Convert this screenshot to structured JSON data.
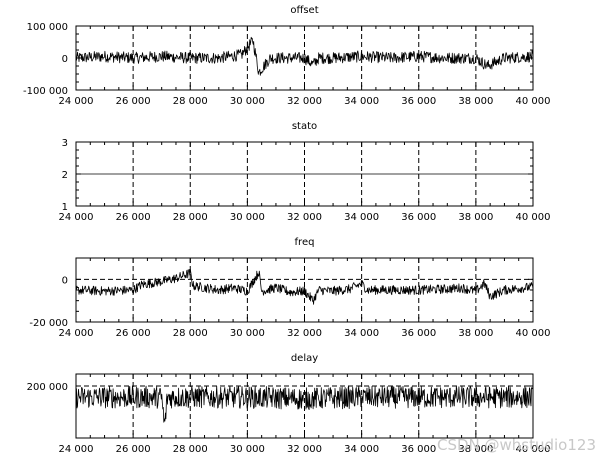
{
  "watermark": "CSDN @whstudio123",
  "chart_data": [
    {
      "type": "line",
      "title": "offset",
      "xlabel": "",
      "ylabel": "",
      "xlim": [
        24000,
        40000
      ],
      "ylim": [
        -100000,
        100000
      ],
      "xticks": [
        24000,
        26000,
        28000,
        30000,
        32000,
        34000,
        36000,
        38000,
        40000
      ],
      "xtick_labels": [
        "24 000",
        "26 000",
        "28 000",
        "30 000",
        "32 000",
        "34 000",
        "36 000",
        "38 000",
        "40 000"
      ],
      "yticks": [
        -100000,
        0,
        100000
      ],
      "ytick_labels": [
        "-100 000",
        "0",
        "100 000"
      ],
      "dashed_x_grid": [
        26000,
        28000,
        30000,
        32000,
        34000,
        36000,
        38000
      ],
      "dashed_y_grid": [],
      "noise_amplitude": 18000,
      "series": [
        {
          "x": [
            24000,
            25000,
            26000,
            27000,
            28000,
            29000,
            29800,
            30200,
            30400,
            30800,
            31500,
            32000,
            32300,
            32500,
            33000,
            34000,
            35000,
            36000,
            37000,
            38000,
            38400,
            39000,
            40000
          ],
          "y": [
            0,
            5000,
            0,
            5000,
            0,
            0,
            10000,
            55000,
            -45000,
            0,
            0,
            0,
            -20000,
            0,
            0,
            5000,
            0,
            5000,
            0,
            0,
            -25000,
            0,
            5000
          ]
        }
      ]
    },
    {
      "type": "line",
      "title": "stato",
      "xlabel": "",
      "ylabel": "",
      "xlim": [
        24000,
        40000
      ],
      "ylim": [
        1,
        3
      ],
      "xticks": [
        24000,
        26000,
        28000,
        30000,
        32000,
        34000,
        36000,
        38000,
        40000
      ],
      "xtick_labels": [
        "24 000",
        "26 000",
        "28 000",
        "30 000",
        "32 000",
        "34 000",
        "36 000",
        "38 000",
        "40 000"
      ],
      "yticks": [
        1,
        2,
        3
      ],
      "ytick_labels": [
        "1",
        "2",
        "3"
      ],
      "dashed_x_grid": [
        26000,
        28000,
        30000,
        32000,
        34000,
        36000,
        38000
      ],
      "dashed_y_grid": [],
      "noise_amplitude": 0,
      "series": [
        {
          "x": [
            24000,
            40000
          ],
          "y": [
            2,
            2
          ]
        }
      ]
    },
    {
      "type": "line",
      "title": "freq",
      "xlabel": "",
      "ylabel": "",
      "xlim": [
        24000,
        40000
      ],
      "ylim": [
        -20000,
        10000
      ],
      "xticks": [
        24000,
        26000,
        28000,
        30000,
        32000,
        34000,
        36000,
        38000,
        40000
      ],
      "xtick_labels": [
        "24 000",
        "26 000",
        "28 000",
        "30 000",
        "32 000",
        "34 000",
        "36 000",
        "38 000",
        "40 000"
      ],
      "yticks": [
        -20000,
        0
      ],
      "ytick_labels": [
        "-20 000",
        "0"
      ],
      "dashed_x_grid": [
        26000,
        28000,
        30000,
        32000,
        34000,
        36000,
        38000
      ],
      "dashed_y_grid": [
        0
      ],
      "noise_amplitude": 2200,
      "series": [
        {
          "x": [
            24000,
            25000,
            26000,
            26300,
            27000,
            27500,
            28000,
            28100,
            29000,
            29500,
            30000,
            30400,
            30500,
            31000,
            31500,
            32000,
            32300,
            32500,
            33000,
            33600,
            34000,
            34200,
            35000,
            36000,
            37000,
            37500,
            38000,
            38300,
            38500,
            39000,
            40000
          ],
          "y": [
            -5000,
            -5500,
            -5000,
            -2500,
            -1000,
            500,
            3000,
            -3000,
            -5000,
            -4000,
            -5500,
            3500,
            -5500,
            -4000,
            -6000,
            -5500,
            -10000,
            -5000,
            -5500,
            -4500,
            -2000,
            -5000,
            -5000,
            -5000,
            -4500,
            -4000,
            -5500,
            -2000,
            -8000,
            -5000,
            -3500
          ]
        }
      ]
    },
    {
      "type": "line",
      "title": "delay",
      "xlabel": "",
      "ylabel": "",
      "xlim": [
        24000,
        40000
      ],
      "ylim": [
        135000,
        215000
      ],
      "xticks": [
        24000,
        26000,
        28000,
        30000,
        32000,
        34000,
        36000,
        38000,
        40000
      ],
      "xtick_labels": [
        "24 000",
        "26 000",
        "28 000",
        "30 000",
        "32 000",
        "34 000",
        "36 000",
        "38 000",
        "40 000"
      ],
      "yticks": [
        200000
      ],
      "ytick_labels": [
        "200 000"
      ],
      "dashed_x_grid": [
        26000,
        28000,
        30000,
        32000,
        34000,
        36000,
        38000
      ],
      "dashed_y_grid": [
        200000
      ],
      "noise_amplitude": 14000,
      "series": [
        {
          "x": [
            24000,
            27000,
            27100,
            27200,
            30000,
            32000,
            34000,
            37000,
            40000
          ],
          "y": [
            186000,
            186000,
            150000,
            186000,
            186000,
            184000,
            186000,
            186000,
            186000
          ]
        }
      ]
    }
  ]
}
